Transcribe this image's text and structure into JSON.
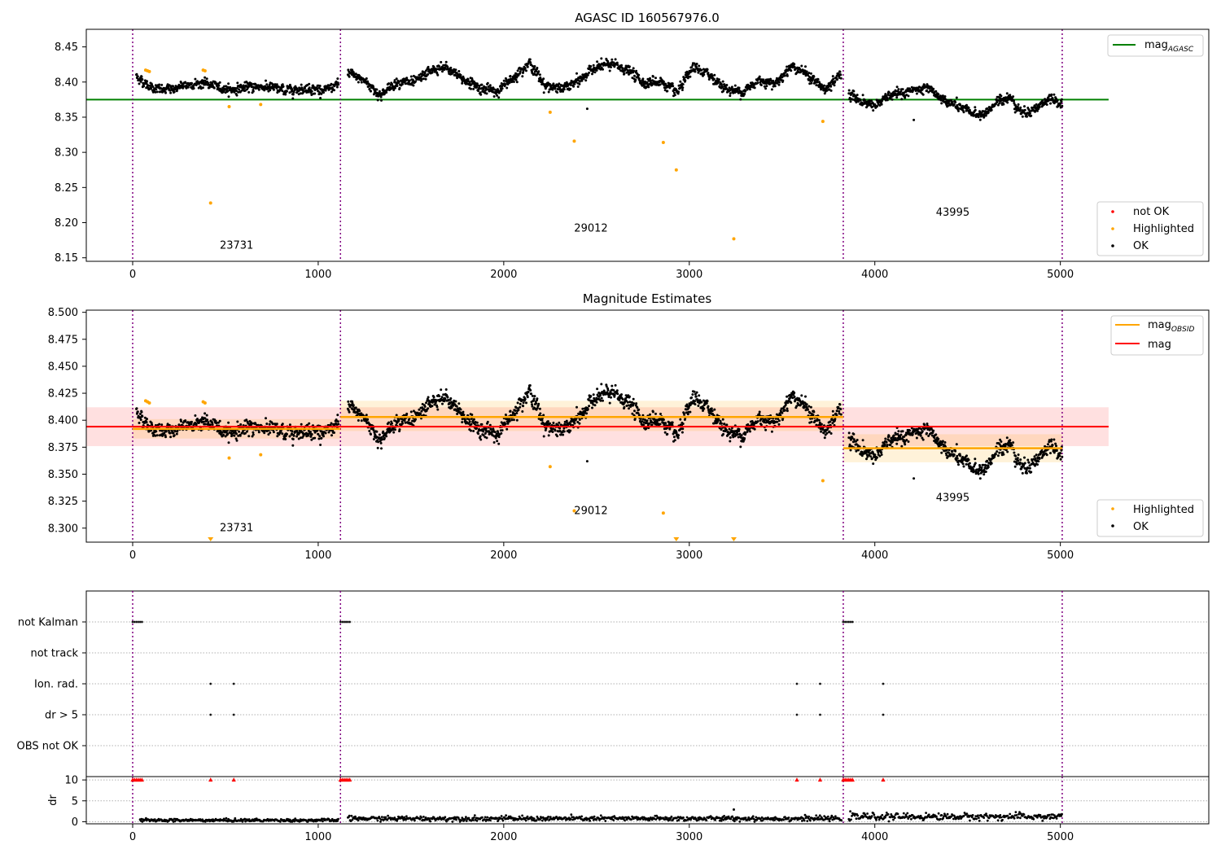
{
  "figure": {
    "title_panel1": "AGASC ID 160567976.0",
    "title_panel2": "Magnitude Estimates"
  },
  "chart_data": [
    {
      "type": "scatter",
      "title": "AGASC ID 160567976.0",
      "xlim": [
        -250,
        5800
      ],
      "ylim": [
        8.145,
        8.475
      ],
      "x_ticks": [
        0,
        1000,
        2000,
        3000,
        4000,
        5000
      ],
      "y_ticks": [
        8.15,
        8.2,
        8.25,
        8.3,
        8.35,
        8.4,
        8.45
      ],
      "y_tick_labels": [
        "8.15",
        "8.20",
        "8.25",
        "8.30",
        "8.35",
        "8.40",
        "8.45"
      ],
      "obsid_boundaries": [
        0,
        1120,
        3830,
        5010
      ],
      "obsid_labels": [
        {
          "text": "23731",
          "x": 560,
          "y": 8.163
        },
        {
          "text": "29012",
          "x": 2470,
          "y": 8.187
        },
        {
          "text": "43995",
          "x": 4420,
          "y": 8.21
        }
      ],
      "lines": [
        {
          "name": "mag_AGASC",
          "color": "#008000",
          "y": 8.375,
          "x": [
            -250,
            5260
          ]
        }
      ],
      "segments": [
        {
          "x": [
            20,
            1110
          ],
          "profile": [
            8.408,
            8.393,
            8.388,
            8.392,
            8.397,
            8.399,
            8.393,
            8.389,
            8.392,
            8.394,
            8.392,
            8.388,
            8.39,
            8.391,
            8.388,
            8.397
          ],
          "sigma": 0.0042
        },
        {
          "x": [
            1160,
            3820
          ],
          "profile": [
            8.413,
            8.402,
            8.381,
            8.401,
            8.398,
            8.416,
            8.42,
            8.404,
            8.392,
            8.386,
            8.405,
            8.428,
            8.395,
            8.39,
            8.401,
            8.421,
            8.425,
            8.417,
            8.399,
            8.401,
            8.384,
            8.42,
            8.41,
            8.39,
            8.386,
            8.403,
            8.398,
            8.424,
            8.41,
            8.388,
            8.413
          ],
          "sigma": 0.0048
        },
        {
          "x": [
            3860,
            5010
          ],
          "profile": [
            8.383,
            8.372,
            8.367,
            8.38,
            8.384,
            8.389,
            8.39,
            8.376,
            8.366,
            8.358,
            8.352,
            8.37,
            8.38,
            8.356,
            8.362,
            8.376,
            8.369
          ],
          "sigma": 0.0045
        }
      ],
      "highlighted_points": [
        {
          "x": 70,
          "y": 8.417
        },
        {
          "x": 80,
          "y": 8.416
        },
        {
          "x": 90,
          "y": 8.415
        },
        {
          "x": 380,
          "y": 8.417
        },
        {
          "x": 390,
          "y": 8.416
        },
        {
          "x": 420,
          "y": 8.228
        },
        {
          "x": 520,
          "y": 8.365
        },
        {
          "x": 690,
          "y": 8.368
        },
        {
          "x": 2250,
          "y": 8.357
        },
        {
          "x": 2380,
          "y": 8.316
        },
        {
          "x": 2860,
          "y": 8.314
        },
        {
          "x": 2930,
          "y": 8.275
        },
        {
          "x": 3240,
          "y": 8.177
        },
        {
          "x": 3720,
          "y": 8.344
        }
      ],
      "extra_ok_points": [
        {
          "x": 2450,
          "y": 8.362
        },
        {
          "x": 4210,
          "y": 8.346
        }
      ],
      "legend_upper": {
        "entries": [
          {
            "label": "mag",
            "sub": "AGASC"
          }
        ],
        "placement": "upper-right"
      },
      "legend_lower": {
        "entries": [
          "not OK",
          "Highlighted",
          "OK"
        ],
        "placement": "lower-right"
      },
      "series_colors": {
        "not_ok": "#ff0000",
        "highlighted": "#ffa500",
        "ok": "#000000"
      }
    },
    {
      "type": "scatter",
      "title": "Magnitude Estimates",
      "xlim": [
        -250,
        5800
      ],
      "ylim": [
        8.287,
        8.502
      ],
      "x_ticks": [
        0,
        1000,
        2000,
        3000,
        4000,
        5000
      ],
      "y_ticks": [
        8.3,
        8.325,
        8.35,
        8.375,
        8.4,
        8.425,
        8.45,
        8.475,
        8.5
      ],
      "y_tick_labels": [
        "8.300",
        "8.325",
        "8.350",
        "8.375",
        "8.400",
        "8.425",
        "8.450",
        "8.475",
        "8.500"
      ],
      "obsid_labels": [
        {
          "text": "23731",
          "x": 560,
          "y": 8.297
        },
        {
          "text": "29012",
          "x": 2470,
          "y": 8.313
        },
        {
          "text": "43995",
          "x": 4420,
          "y": 8.325
        }
      ],
      "mag_line": {
        "y": 8.394,
        "band": [
          8.376,
          8.412
        ],
        "x": [
          -250,
          5260
        ],
        "color": "#ff0000"
      },
      "mag_obsid": [
        {
          "x": [
            0,
            1120
          ],
          "y": 8.392,
          "band": [
            8.383,
            8.401
          ]
        },
        {
          "x": [
            1120,
            3830
          ],
          "y": 8.403,
          "band": [
            8.39,
            8.418
          ]
        },
        {
          "x": [
            3830,
            5010
          ],
          "y": 8.374,
          "band": [
            8.361,
            8.387
          ]
        }
      ],
      "highlighted_points": [
        {
          "x": 70,
          "y": 8.418
        },
        {
          "x": 80,
          "y": 8.417
        },
        {
          "x": 90,
          "y": 8.416
        },
        {
          "x": 380,
          "y": 8.417
        },
        {
          "x": 390,
          "y": 8.416
        },
        {
          "x": 520,
          "y": 8.365
        },
        {
          "x": 690,
          "y": 8.368
        },
        {
          "x": 2250,
          "y": 8.357
        },
        {
          "x": 2380,
          "y": 8.316
        },
        {
          "x": 2860,
          "y": 8.314
        },
        {
          "x": 3720,
          "y": 8.344
        }
      ],
      "offscale_low_points": [
        420,
        2930,
        3240
      ],
      "legend_upper": {
        "entries": [
          {
            "label": "mag",
            "sub": "OBSID"
          },
          {
            "label": "mag"
          }
        ],
        "placement": "upper-right"
      },
      "legend_lower": {
        "entries": [
          "Highlighted",
          "OK"
        ],
        "placement": "lower-right"
      }
    },
    {
      "type": "scatter",
      "flag_rows": [
        "not Kalman",
        "not track",
        "Ion. rad.",
        "dr > 5",
        "OBS not OK"
      ],
      "flags": [
        {
          "row": "not Kalman",
          "x": [
            0,
            10,
            20,
            30,
            40,
            50,
            1120,
            1130,
            1140,
            1150,
            1160,
            1170,
            3830,
            3840,
            3850,
            3860,
            3870,
            3880
          ]
        },
        {
          "row": "Ion. rad.",
          "x": [
            420,
            545,
            3580,
            3705,
            4045
          ]
        },
        {
          "row": "dr > 5",
          "x": [
            420,
            545,
            3580,
            3705,
            4045
          ]
        }
      ]
    },
    {
      "type": "scatter",
      "ylabel": "dr",
      "ylim": [
        -0.5,
        10.8
      ],
      "y_ticks": [
        0,
        5,
        10
      ],
      "y_tick_labels": [
        "0",
        "5",
        "10"
      ],
      "x_ticks": [
        0,
        1000,
        2000,
        3000,
        4000,
        5000
      ],
      "capped_points": {
        "y": 10,
        "x": [
          0,
          10,
          20,
          30,
          40,
          50,
          420,
          545,
          1120,
          1130,
          1140,
          1150,
          1160,
          1170,
          3580,
          3705,
          3830,
          3840,
          3850,
          3860,
          3870,
          3880,
          4045
        ]
      },
      "segment_means": [
        {
          "x": [
            40,
            1110
          ],
          "y": 0.35
        },
        {
          "x": [
            1160,
            3820
          ],
          "y": 0.75
        },
        {
          "x": [
            3860,
            5010
          ],
          "y": 1.2
        }
      ],
      "outliers": [
        {
          "x": 3240,
          "y": 2.9
        },
        {
          "x": 3940,
          "y": 2.0
        }
      ]
    }
  ]
}
